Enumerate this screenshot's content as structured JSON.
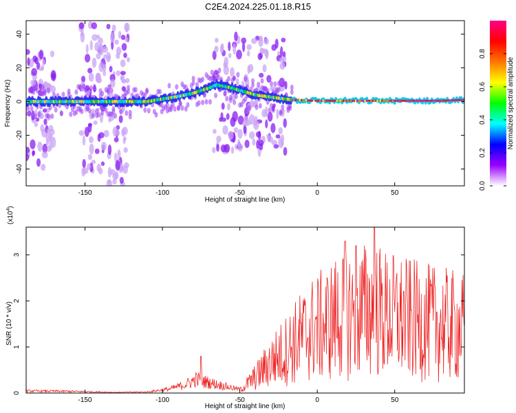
{
  "title": "C2E4.2024.225.01.18.R15",
  "chart_data": [
    {
      "type": "heatmap",
      "xlabel": "Height of straight line (km)",
      "ylabel": "Frequency (Hz)",
      "xlim": [
        -188,
        95
      ],
      "ylim": [
        -50,
        48
      ],
      "x_ticks": [
        -150,
        -100,
        -50,
        0,
        50
      ],
      "y_ticks": [
        -40,
        -20,
        0,
        20,
        40
      ],
      "ridge": {
        "x": [
          -188,
          -170,
          -150,
          -130,
          -110,
          -90,
          -80,
          -70,
          -65,
          -55,
          -40,
          -25,
          -16,
          0,
          20,
          40,
          60,
          80,
          95
        ],
        "y": [
          0,
          0,
          0,
          0,
          0,
          3,
          5,
          8,
          10,
          8,
          4,
          2,
          1,
          0.5,
          0.5,
          0.5,
          0.5,
          0.5,
          1
        ]
      },
      "scatter_bands": [
        {
          "x": [
            -188,
            -170
          ],
          "y": [
            -40,
            30
          ]
        },
        {
          "x": [
            -153,
            -122
          ],
          "y": [
            -50,
            48
          ]
        },
        {
          "x": [
            -67,
            -20
          ],
          "y": [
            -30,
            40
          ]
        }
      ],
      "colorbar": {
        "label": "Normalized spectral amplitude",
        "range": [
          0,
          1
        ],
        "ticks": [
          "0.0",
          "0.2",
          "0.4",
          "0.6",
          "0.8"
        ],
        "tick_values": [
          0.0,
          0.2,
          0.4,
          0.6,
          0.8
        ],
        "colors": [
          "#ffffff",
          "#9900ff",
          "#0000ff",
          "#00ffff",
          "#00ff00",
          "#ffff00",
          "#ff7700",
          "#ff0000",
          "#ff0088"
        ]
      }
    },
    {
      "type": "line",
      "xlabel": "Height of straight line (km)",
      "ylabel": "SNR (10 * v/v)",
      "ymultiplier": "(x10",
      "ymultiplier_exp": "4",
      "ymultiplier_close": ")",
      "xlim": [
        -188,
        95
      ],
      "ylim": [
        0,
        3.6
      ],
      "x_ticks": [
        -150,
        -100,
        -50,
        0,
        50
      ],
      "y_ticks": [
        0,
        1,
        2,
        3
      ],
      "color": "#ee2222",
      "envelope": {
        "x": [
          -188,
          -160,
          -130,
          -110,
          -95,
          -85,
          -78,
          -70,
          -60,
          -50,
          -45,
          -38,
          -30,
          -22,
          -15,
          -5,
          5,
          15,
          25,
          35,
          45,
          55,
          65,
          80,
          95
        ],
        "y": [
          0.06,
          0.05,
          0.02,
          0.03,
          0.12,
          0.25,
          0.4,
          0.3,
          0.2,
          0.1,
          0.3,
          0.6,
          1.0,
          1.3,
          1.6,
          2.0,
          2.2,
          2.5,
          2.6,
          2.7,
          2.5,
          2.4,
          2.3,
          2.2,
          2.1
        ]
      },
      "peaks": [
        {
          "x": 37,
          "y": 3.65
        },
        {
          "x": 25,
          "y": 3.2
        },
        {
          "x": 18,
          "y": 3.3
        },
        {
          "x": -75,
          "y": 0.8
        }
      ]
    }
  ]
}
